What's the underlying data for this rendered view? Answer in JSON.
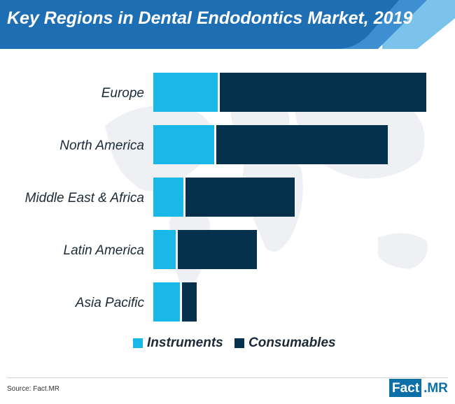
{
  "title": "Key Regions in Dental Endodontics Market, 2019",
  "source": "Source: Fact.MR",
  "logo": {
    "part1": "Fact",
    "part2": ".MR"
  },
  "colors": {
    "banner": "#1e6eb4",
    "banner_stripe_1": "#3d8fd2",
    "banner_stripe_2": "#7cc3ec",
    "instruments": "#1ab8e8",
    "consumables": "#05314d",
    "map": "#eef0f3"
  },
  "chart_data": {
    "type": "bar",
    "orientation": "horizontal",
    "stacked": true,
    "categories": [
      "Europe",
      "North America",
      "Middle East & Africa",
      "Latin America",
      "Asia Pacific"
    ],
    "series": [
      {
        "name": "Instruments",
        "values": [
          92,
          87,
          43,
          32,
          38
        ]
      },
      {
        "name": "Consumables",
        "values": [
          298,
          248,
          159,
          116,
          24
        ]
      }
    ],
    "legend_position": "bottom",
    "grid": false,
    "axes_visible": false
  }
}
